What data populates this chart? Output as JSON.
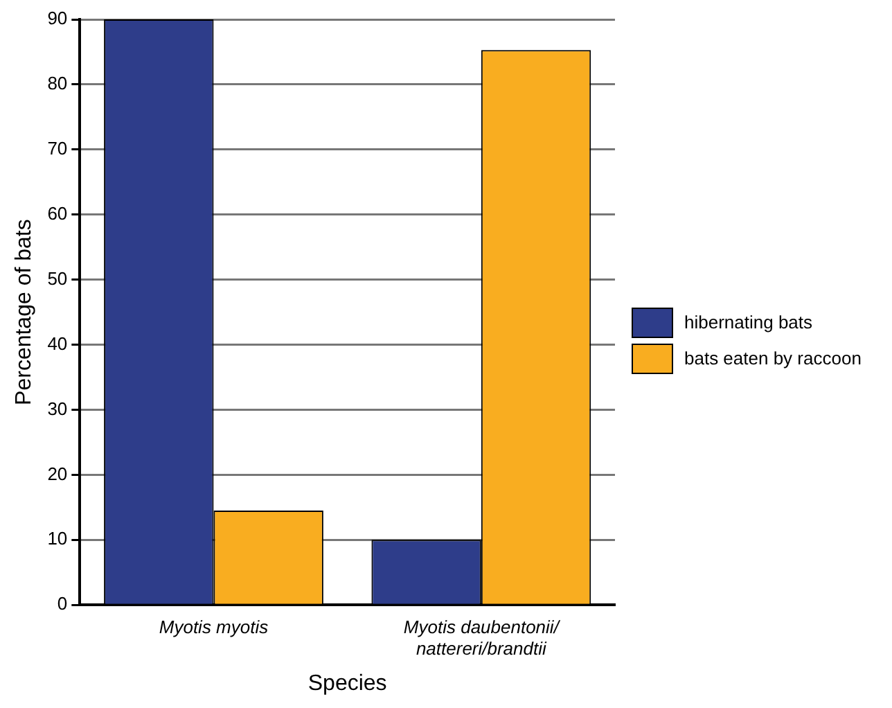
{
  "chart_data": {
    "type": "bar",
    "xlabel": "Species",
    "ylabel": "Percentage of bats",
    "categories": [
      "Myotis myotis",
      "Myotis daubentonii/nattereri/brandtii"
    ],
    "series": [
      {
        "name": "hibernating bats",
        "color": "#2e3d8a",
        "values": [
          90,
          10
        ]
      },
      {
        "name": "bats eaten by raccoon",
        "color": "#f9ad20",
        "values": [
          14.5,
          85.3
        ]
      }
    ],
    "ylim": [
      0,
      90
    ],
    "yticks": [
      0,
      10,
      20,
      30,
      40,
      50,
      60,
      70,
      80,
      90
    ],
    "grid": "y",
    "legend": "right"
  }
}
